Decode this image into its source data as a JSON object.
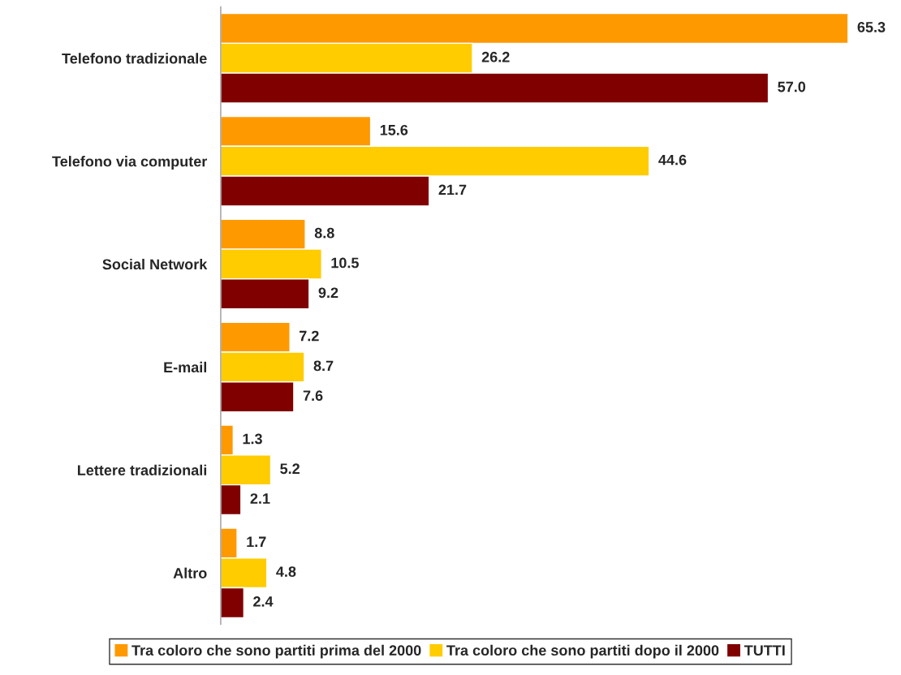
{
  "chart_data": {
    "type": "bar",
    "orientation": "horizontal",
    "categories": [
      "Telefono tradizionale",
      "Telefono via computer",
      "Social Network",
      "E-mail",
      "Lettere tradizionali",
      "Altro"
    ],
    "series": [
      {
        "name": "Tra coloro che sono partiti prima del 2000",
        "color": "#ff9900",
        "values": [
          65.3,
          15.6,
          8.8,
          7.2,
          1.3,
          1.7
        ],
        "value_labels": [
          "65.3",
          "15.6",
          "8.8",
          "7.2",
          "1.3",
          "1.7"
        ]
      },
      {
        "name": "Tra coloro che sono partiti dopo il 2000",
        "color": "#ffcc00",
        "values": [
          26.2,
          44.6,
          10.5,
          8.7,
          5.2,
          4.8
        ],
        "value_labels": [
          "26.2",
          "44.6",
          "10.5",
          "8.7",
          "5.2",
          "4.8"
        ]
      },
      {
        "name": "TUTTI",
        "color": "#800000",
        "values": [
          57.0,
          21.7,
          9.2,
          7.6,
          2.1,
          2.4
        ],
        "value_labels": [
          "57.0",
          "21.7",
          "9.2",
          "7.6",
          "2.1",
          "2.4"
        ]
      }
    ],
    "legend": "bottom",
    "grid": false
  }
}
